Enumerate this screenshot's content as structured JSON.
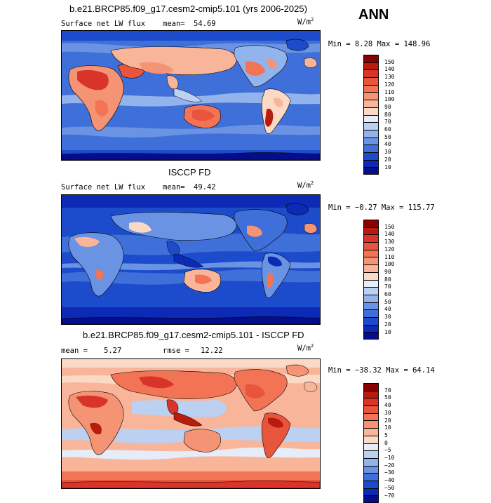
{
  "annotation": "ANN",
  "panels": [
    {
      "title": "b.e21.BRCP85.f09_g17.cesm2-cmip5.101 (yrs 2006-2025)",
      "left_label": "Surface net LW flux",
      "stat_label": "mean=",
      "stat_value": "54.69",
      "stat2_label": "",
      "stat2_value": "",
      "units": "W/m",
      "units_exp": "2",
      "min_max": "Min =   8.28 Max = 148.96",
      "colorbar": {
        "levels": [
          "150",
          "140",
          "130",
          "120",
          "110",
          "100",
          "90",
          "80",
          "70",
          "60",
          "50",
          "40",
          "30",
          "20",
          "10"
        ],
        "colors": [
          "#8b0000",
          "#b71c0c",
          "#d9342a",
          "#e8553c",
          "#f27455",
          "#f59475",
          "#f8b59a",
          "#fbd9c4",
          "#e6ecf8",
          "#bcd0f2",
          "#93b3ec",
          "#6a93e3",
          "#3f6fd8",
          "#1c4ccb",
          "#0c2ab6",
          "#050d8a"
        ]
      }
    },
    {
      "title": "ISCCP FD",
      "left_label": "Surface net LW flux",
      "stat_label": "mean=",
      "stat_value": "49.42",
      "stat2_label": "",
      "stat2_value": "",
      "units": "W/m",
      "units_exp": "2",
      "min_max": "Min =  −0.27 Max = 115.77",
      "colorbar": {
        "levels": [
          "150",
          "140",
          "130",
          "120",
          "110",
          "100",
          "90",
          "80",
          "70",
          "60",
          "50",
          "40",
          "30",
          "20",
          "10"
        ],
        "colors": [
          "#8b0000",
          "#b71c0c",
          "#d9342a",
          "#e8553c",
          "#f27455",
          "#f59475",
          "#f8b59a",
          "#fbd9c4",
          "#e6ecf8",
          "#bcd0f2",
          "#93b3ec",
          "#6a93e3",
          "#3f6fd8",
          "#1c4ccb",
          "#0c2ab6",
          "#050d8a"
        ]
      }
    },
    {
      "title": "b.e21.BRCP85.f09_g17.cesm2-cmip5.101 - ISCCP FD",
      "left_label": "",
      "stat_label": "mean =",
      "stat_value": "5.27",
      "stat2_label": "rmse =",
      "stat2_value": "12.22",
      "units": "W/m",
      "units_exp": "2",
      "min_max": "Min = −38.32 Max =  64.14",
      "colorbar": {
        "levels": [
          "70",
          "50",
          "40",
          "30",
          "20",
          "10",
          "5",
          "0",
          "−5",
          "−10",
          "−20",
          "−30",
          "−40",
          "−50",
          "−70"
        ],
        "colors": [
          "#8b0000",
          "#b71c0c",
          "#d9342a",
          "#e8553c",
          "#f27455",
          "#f59475",
          "#f8b59a",
          "#fbd9c4",
          "#e6ecf8",
          "#bcd0f2",
          "#93b3ec",
          "#6a93e3",
          "#3f6fd8",
          "#1c4ccb",
          "#0c2ab6",
          "#050d8a"
        ]
      }
    }
  ]
}
